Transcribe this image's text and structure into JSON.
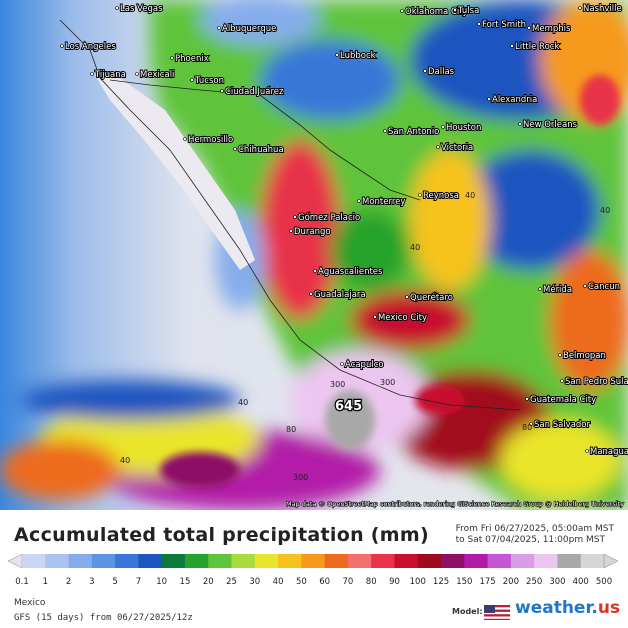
{
  "map": {
    "cities": [
      "Las Vegas",
      "Oklahoma City",
      "Tulsa",
      "Nashville",
      "Albuquerque",
      "Fort Smith",
      "Memphis",
      "Los Angeles",
      "Little Rock",
      "Phoenix",
      "Lubbock",
      "Dallas",
      "Tijuana",
      "Mexicali",
      "Tucson",
      "Ciudad Juárez",
      "Alexandria",
      "Hermosillo",
      "Chihuahua",
      "San Antonio",
      "Houston",
      "New Orleans",
      "Victoria",
      "Monterrey",
      "Reynosa",
      "Gómez Palacio",
      "Durango",
      "Aguascalientes",
      "Guadalajara",
      "Querétaro",
      "Mexico City",
      "Mérida",
      "Cancun",
      "Belmopan",
      "San Pedro Sula",
      "Acapulco",
      "Guatemala City",
      "San Salvador",
      "Managua"
    ],
    "contour_labels": [
      "40",
      "40",
      "80",
      "40",
      "300",
      "300",
      "80",
      "40",
      "300",
      "40"
    ],
    "max_label": "645",
    "attribution": "Map data © OpenStreetMap contributors, rendering GIScience Research Group @ Heidelberg University"
  },
  "footer": {
    "title": "Accumulated total precipitation (mm)",
    "period_from": "From Fri 06/27/2025, 05:00am MST",
    "period_to": "to Sat 07/04/2025, 11:00pm MST",
    "region": "Mexico",
    "run": "GFS (15 days) from 06/27/2025/12z",
    "model_label": "Model:",
    "logo": "weather.",
    "logo_suffix": "us"
  },
  "legend": {
    "ticks": [
      "0.1",
      "1",
      "2",
      "3",
      "5",
      "7",
      "10",
      "15",
      "20",
      "25",
      "30",
      "40",
      "50",
      "60",
      "70",
      "80",
      "90",
      "100",
      "125",
      "150",
      "175",
      "200",
      "250",
      "300",
      "400",
      "500"
    ],
    "colors": [
      "#e6e0f2",
      "#c9d6f3",
      "#a9c4f0",
      "#86adeb",
      "#5d94e4",
      "#3877d8",
      "#1d55c0",
      "#0c7a3a",
      "#25a32c",
      "#5ec43a",
      "#a8dc3c",
      "#e9e52c",
      "#f7c21f",
      "#f59a1c",
      "#ee6a1f",
      "#f2716d",
      "#e8334a",
      "#c8102e",
      "#a10a1e",
      "#8e1066",
      "#b21aa8",
      "#c556d6",
      "#d99de6",
      "#ecc6f0",
      "#a8a8a8",
      "#d6d6d6"
    ]
  }
}
